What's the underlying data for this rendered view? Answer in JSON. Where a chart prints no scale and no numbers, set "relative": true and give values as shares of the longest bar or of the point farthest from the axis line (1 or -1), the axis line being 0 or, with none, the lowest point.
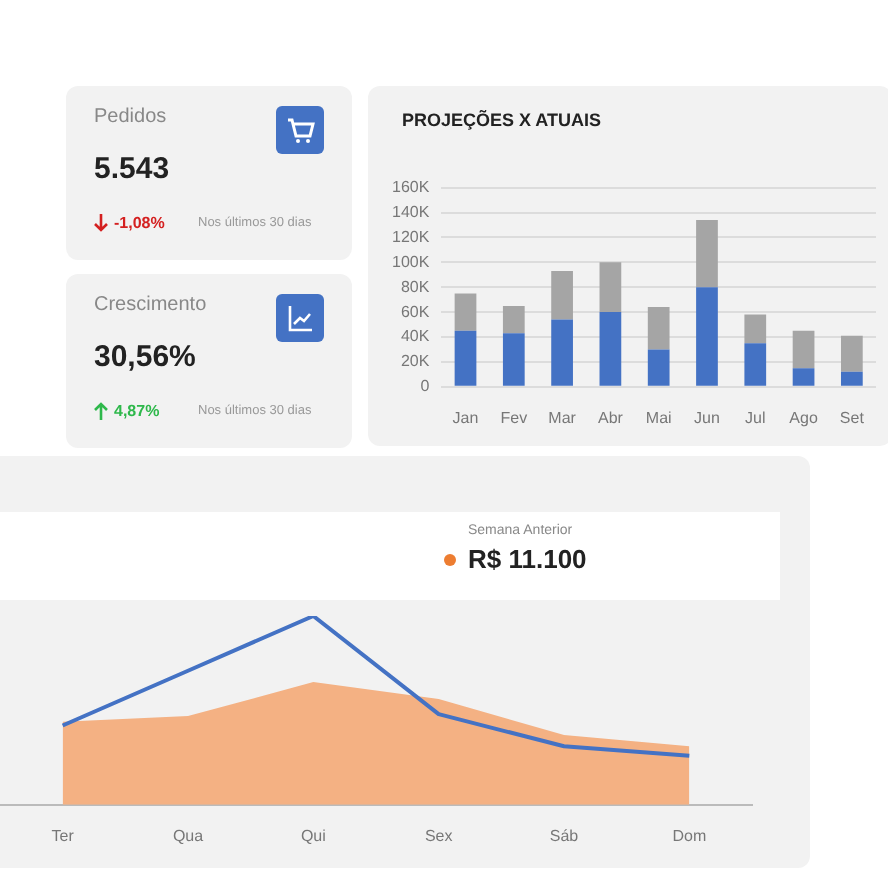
{
  "chart_data": [
    {
      "type": "other",
      "annotations": [
        "Pedidos",
        "5.543",
        "-1,08%",
        "Nos últimos 30 dias",
        "Crescimento",
        "30,56%",
        "4,87%",
        "Nos últimos 30 dias"
      ]
    },
    {
      "type": "bar",
      "title": "PROJEÇÕES X ATUAIS",
      "categories": [
        "Jan",
        "Fev",
        "Mar",
        "Abr",
        "Mai",
        "Jun",
        "Jul",
        "Ago",
        "Set"
      ],
      "stacked": true,
      "grid": "y",
      "series": [
        {
          "color": "#4472c4",
          "values": [
            45000,
            43000,
            54000,
            60000,
            30000,
            80000,
            35000,
            15000,
            12000
          ]
        },
        {
          "color": "#a5a5a5",
          "values": [
            30000,
            22000,
            39000,
            40000,
            34000,
            54000,
            23000,
            30000,
            29000
          ]
        }
      ],
      "ylim": [
        0,
        160000
      ],
      "yticks": [
        0,
        {
          "value": 20000,
          "label": "20K"
        },
        {
          "value": 40000,
          "label": "40K"
        },
        {
          "value": 60000,
          "label": "60K"
        },
        {
          "value": 80000,
          "label": "80K"
        },
        {
          "value": 100000,
          "label": "100K"
        },
        {
          "value": 120000,
          "label": "120K"
        },
        {
          "value": 140000,
          "label": "140K"
        },
        {
          "value": 160000,
          "label": "160K"
        }
      ]
    },
    {
      "type": "line",
      "relative": true,
      "categories": [
        "Ter",
        "Qua",
        "Qui",
        "Sex",
        "Sáb",
        "Dom"
      ],
      "legend": "top",
      "annotations": [
        "R$ 11.100"
      ],
      "series": [
        {
          "name": "Semana Anterior",
          "type": "area",
          "color": "#f4b183",
          "values": [
            0.44,
            0.47,
            0.65,
            0.56,
            0.37,
            0.31
          ]
        },
        {
          "type": "line",
          "color": "#4472c4",
          "values": [
            0.42,
            0.71,
            1,
            0.48,
            0.31,
            0.26
          ]
        }
      ]
    }
  ]
}
